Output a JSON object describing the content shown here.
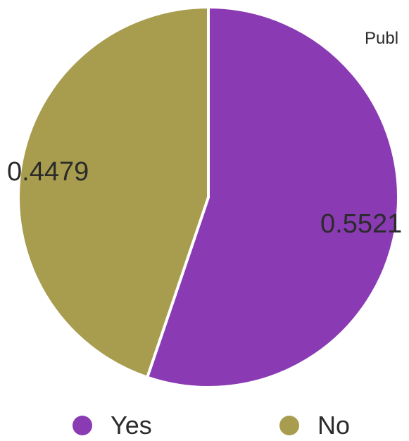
{
  "chart_data": {
    "type": "pie",
    "title": "Publ",
    "categories": [
      "Yes",
      "No"
    ],
    "values": [
      0.5521,
      0.4479
    ],
    "value_labels": [
      "0.5521",
      "0.4479"
    ],
    "colors": [
      "#8a3ab3",
      "#a89d4e"
    ],
    "legend_position": "bottom"
  }
}
